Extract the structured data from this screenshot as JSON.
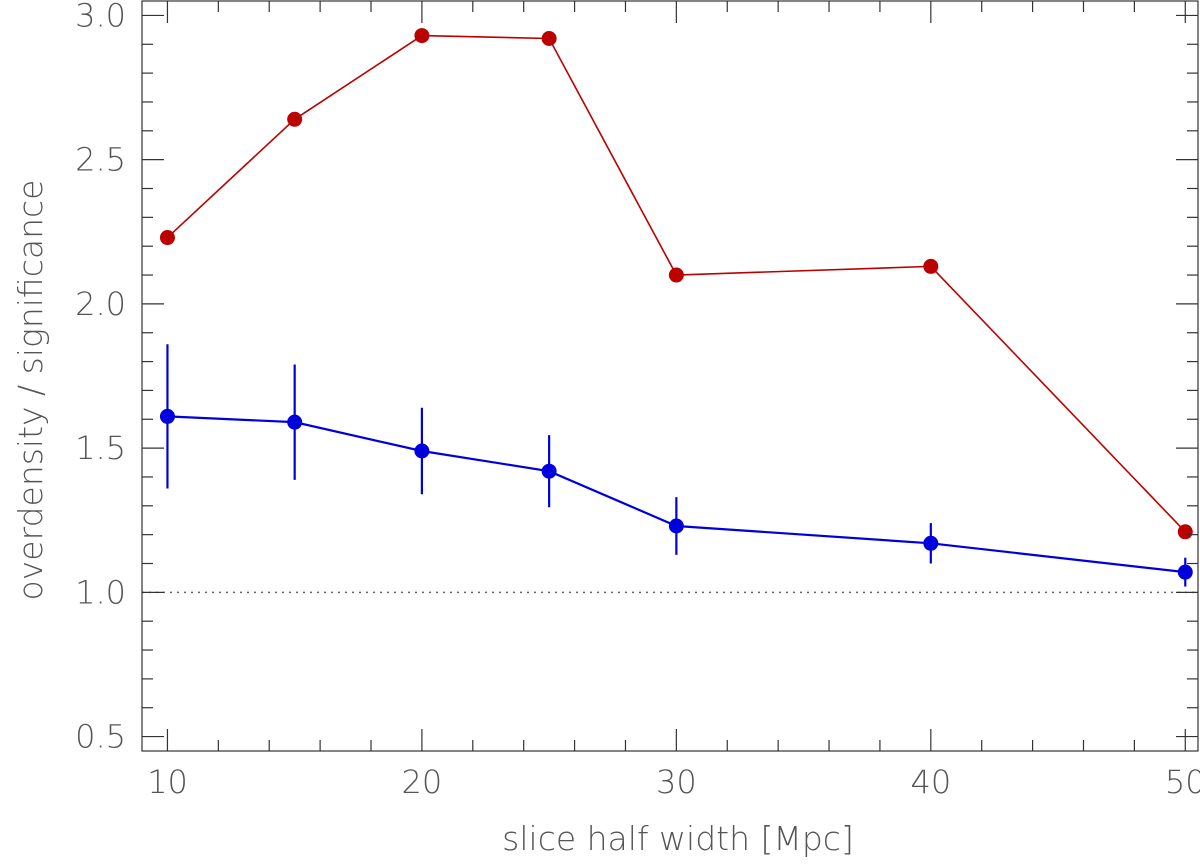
{
  "chart_data": {
    "type": "line",
    "xlabel": "slice half width [Mpc]",
    "ylabel": "overdensity / significance",
    "xlim": [
      9,
      50.5
    ],
    "ylim": [
      0.45,
      3.05
    ],
    "x_ticks": [
      10,
      20,
      30,
      40,
      50
    ],
    "x_tick_labels": [
      "10",
      "20",
      "30",
      "40",
      "50"
    ],
    "x_minor_step": 2,
    "y_ticks": [
      0.5,
      1.0,
      1.5,
      2.0,
      2.5,
      3.0
    ],
    "y_tick_labels": [
      "0.5",
      "1.0",
      "1.5",
      "2.0",
      "2.5",
      "3.0"
    ],
    "y_minor_step": 0.1,
    "grid": false,
    "legend": "none",
    "reference_line": {
      "y": 1.0,
      "style": "dotted",
      "color": "#666666"
    },
    "series": [
      {
        "color": "#bb0000",
        "marker": "circle",
        "x": [
          10,
          15,
          20,
          25,
          30,
          40,
          50
        ],
        "y": [
          2.23,
          2.64,
          2.93,
          2.92,
          2.1,
          2.13,
          1.21
        ]
      },
      {
        "color": "#0000dd",
        "marker": "circle",
        "x": [
          10,
          15,
          20,
          25,
          30,
          40,
          50
        ],
        "y": [
          1.61,
          1.59,
          1.49,
          1.42,
          1.23,
          1.17,
          1.07
        ],
        "yerr": [
          0.25,
          0.2,
          0.15,
          0.125,
          0.1,
          0.07,
          0.05
        ]
      }
    ]
  }
}
